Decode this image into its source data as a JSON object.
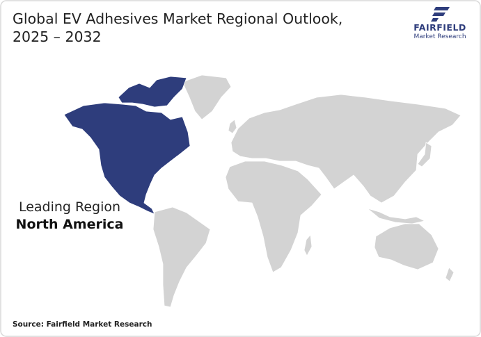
{
  "header": {
    "title_lines": [
      "Global EV Adhesives Market Regional Outlook,",
      "2025 – 2032"
    ]
  },
  "logo": {
    "name": "FAIRFIELD",
    "tagline": "Market Research"
  },
  "callout": {
    "label": "Leading Region",
    "region": "North America"
  },
  "footer": {
    "source": "Source: Fairfield Market Research"
  }
}
